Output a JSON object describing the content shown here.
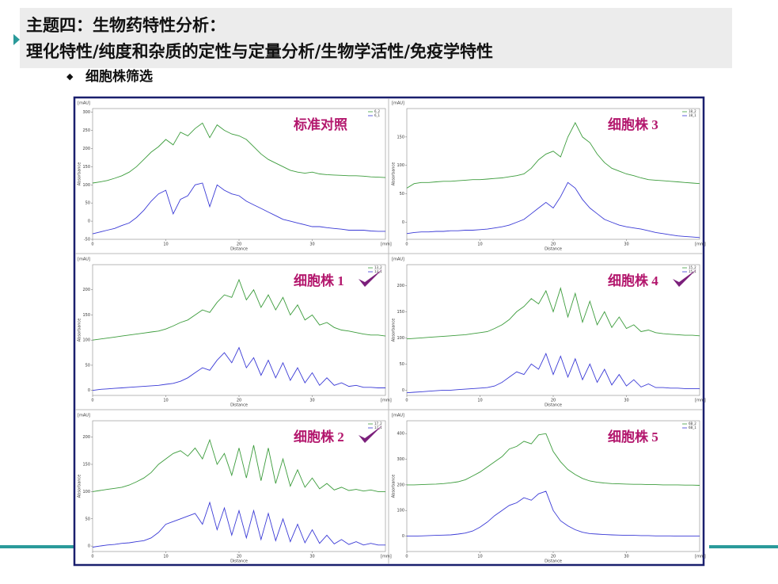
{
  "header": {
    "title_line1": "主题四：生物药特性分析：",
    "title_line2": "理化特性/纯度和杂质的定性与定量分析/生物学活性/免疫学特性",
    "bullet": "细胞株筛选"
  },
  "chart_data": [
    {
      "type": "line",
      "annotation": "标准对照",
      "checked": false,
      "y_unit": "[mAU]",
      "ylabel": "Absorbance",
      "xlabel": "Distance",
      "x_unit": "[mm]",
      "x": [
        0,
        1,
        2,
        3,
        4,
        5,
        6,
        7,
        8,
        9,
        10,
        11,
        12,
        13,
        14,
        15,
        16,
        17,
        18,
        19,
        20,
        21,
        22,
        23,
        24,
        25,
        26,
        27,
        28,
        29,
        30,
        31,
        32,
        33,
        34,
        35,
        36,
        37,
        38,
        39,
        40
      ],
      "xlim": [
        0,
        40
      ],
      "xticks": [
        0,
        10,
        20,
        30
      ],
      "ylim": [
        -50,
        310
      ],
      "yticks": [
        -50,
        0,
        50,
        100,
        150,
        200,
        250,
        300
      ],
      "series": [
        {
          "name": "6_2",
          "color": "#3c9c3c",
          "values": [
            105,
            108,
            112,
            118,
            125,
            135,
            150,
            170,
            190,
            205,
            225,
            210,
            245,
            235,
            255,
            270,
            230,
            265,
            250,
            240,
            235,
            225,
            205,
            185,
            170,
            160,
            150,
            140,
            135,
            132,
            135,
            130,
            128,
            127,
            126,
            125,
            125,
            124,
            122,
            121,
            120
          ]
        },
        {
          "name": "6_1",
          "color": "#3a3ad6",
          "values": [
            -35,
            -30,
            -25,
            -20,
            -12,
            -5,
            10,
            30,
            55,
            75,
            85,
            20,
            60,
            70,
            100,
            105,
            40,
            100,
            85,
            75,
            70,
            55,
            45,
            35,
            25,
            15,
            5,
            0,
            -5,
            -10,
            -15,
            -15,
            -18,
            -20,
            -22,
            -25,
            -25,
            -25,
            -27,
            -28,
            -28
          ]
        }
      ]
    },
    {
      "type": "line",
      "annotation": "细胞株 3",
      "checked": false,
      "y_unit": "[mAU]",
      "ylabel": "Absorbance",
      "xlabel": "Distance",
      "x_unit": "[mm]",
      "x": [
        0,
        1,
        2,
        3,
        4,
        5,
        6,
        7,
        8,
        9,
        10,
        11,
        12,
        13,
        14,
        15,
        16,
        17,
        18,
        19,
        20,
        21,
        22,
        23,
        24,
        25,
        26,
        27,
        28,
        29,
        30,
        31,
        32,
        33,
        34,
        35,
        36,
        37,
        38,
        39,
        40
      ],
      "xlim": [
        0,
        40
      ],
      "xticks": [
        0,
        10,
        20,
        30
      ],
      "ylim": [
        -30,
        200
      ],
      "yticks": [
        0,
        50,
        100,
        150
      ],
      "series": [
        {
          "name": "18_2",
          "color": "#3c9c3c",
          "values": [
            60,
            68,
            70,
            70,
            71,
            72,
            72,
            73,
            74,
            75,
            75,
            76,
            77,
            78,
            80,
            82,
            85,
            95,
            110,
            120,
            125,
            115,
            150,
            175,
            150,
            140,
            120,
            105,
            95,
            90,
            85,
            82,
            78,
            75,
            74,
            73,
            72,
            71,
            70,
            69,
            68
          ]
        },
        {
          "name": "18_1",
          "color": "#3a3ad6",
          "values": [
            -20,
            -18,
            -17,
            -17,
            -16,
            -16,
            -15,
            -15,
            -14,
            -14,
            -13,
            -12,
            -10,
            -8,
            -5,
            0,
            5,
            15,
            25,
            35,
            25,
            45,
            70,
            60,
            40,
            25,
            15,
            5,
            0,
            -5,
            -8,
            -10,
            -12,
            -15,
            -18,
            -20,
            -22,
            -24,
            -25,
            -26,
            -27
          ]
        }
      ]
    },
    {
      "type": "line",
      "annotation": "细胞株 1",
      "checked": true,
      "y_unit": "[mAU]",
      "ylabel": "Absorbance",
      "xlabel": "Distance",
      "x_unit": "[mm]",
      "x": [
        0,
        1,
        2,
        3,
        4,
        5,
        6,
        7,
        8,
        9,
        10,
        11,
        12,
        13,
        14,
        15,
        16,
        17,
        18,
        19,
        20,
        21,
        22,
        23,
        24,
        25,
        26,
        27,
        28,
        29,
        30,
        31,
        32,
        33,
        34,
        35,
        36,
        37,
        38,
        39,
        40
      ],
      "xlim": [
        0,
        40
      ],
      "xticks": [
        0,
        10,
        20,
        30
      ],
      "ylim": [
        -10,
        250
      ],
      "yticks": [
        0,
        50,
        100,
        150,
        200
      ],
      "series": [
        {
          "name": "13_2",
          "color": "#3c9c3c",
          "values": [
            100,
            102,
            104,
            106,
            108,
            110,
            112,
            114,
            116,
            118,
            122,
            128,
            135,
            140,
            150,
            160,
            155,
            175,
            190,
            185,
            220,
            180,
            200,
            165,
            190,
            160,
            185,
            150,
            170,
            140,
            150,
            130,
            135,
            125,
            120,
            118,
            115,
            112,
            110,
            110,
            108
          ]
        },
        {
          "name": "13_1",
          "color": "#3a3ad6",
          "values": [
            0,
            2,
            3,
            4,
            5,
            6,
            7,
            8,
            9,
            10,
            12,
            14,
            18,
            25,
            35,
            45,
            40,
            60,
            75,
            55,
            85,
            45,
            65,
            30,
            60,
            25,
            55,
            20,
            45,
            15,
            35,
            10,
            25,
            10,
            15,
            8,
            10,
            6,
            6,
            5,
            5
          ]
        }
      ]
    },
    {
      "type": "line",
      "annotation": "细胞株 4",
      "checked": true,
      "y_unit": "[mAU]",
      "ylabel": "Absorbance",
      "xlabel": "Distance",
      "x_unit": "[mm]",
      "x": [
        0,
        1,
        2,
        3,
        4,
        5,
        6,
        7,
        8,
        9,
        10,
        11,
        12,
        13,
        14,
        15,
        16,
        17,
        18,
        19,
        20,
        21,
        22,
        23,
        24,
        25,
        26,
        27,
        28,
        29,
        30,
        31,
        32,
        33,
        34,
        35,
        36,
        37,
        38,
        39,
        40
      ],
      "xlim": [
        0,
        40
      ],
      "xticks": [
        0,
        10,
        20,
        30
      ],
      "ylim": [
        -10,
        240
      ],
      "yticks": [
        0,
        50,
        100,
        150,
        200
      ],
      "series": [
        {
          "name": "15_2",
          "color": "#3c9c3c",
          "values": [
            98,
            99,
            100,
            101,
            102,
            103,
            104,
            105,
            106,
            108,
            110,
            112,
            118,
            125,
            135,
            150,
            160,
            175,
            165,
            190,
            150,
            195,
            140,
            185,
            130,
            170,
            125,
            150,
            120,
            140,
            118,
            125,
            112,
            115,
            110,
            108,
            107,
            106,
            105,
            105,
            104
          ]
        },
        {
          "name": "15_1",
          "color": "#3a3ad6",
          "values": [
            -5,
            -4,
            -3,
            -2,
            -1,
            0,
            0,
            1,
            2,
            3,
            4,
            5,
            8,
            15,
            25,
            35,
            30,
            50,
            40,
            70,
            30,
            65,
            25,
            60,
            20,
            50,
            15,
            40,
            10,
            30,
            8,
            20,
            6,
            12,
            5,
            5,
            4,
            4,
            3,
            3,
            3
          ]
        }
      ]
    },
    {
      "type": "line",
      "annotation": "细胞株 2",
      "checked": true,
      "y_unit": "[mAU]",
      "ylabel": "Absorbance",
      "xlabel": "Distance",
      "x_unit": "[mm]",
      "x": [
        0,
        1,
        2,
        3,
        4,
        5,
        6,
        7,
        8,
        9,
        10,
        11,
        12,
        13,
        14,
        15,
        16,
        17,
        18,
        19,
        20,
        21,
        22,
        23,
        24,
        25,
        26,
        27,
        28,
        29,
        30,
        31,
        32,
        33,
        34,
        35,
        36,
        37,
        38,
        39,
        40
      ],
      "xlim": [
        0,
        40
      ],
      "xticks": [
        0,
        10,
        20,
        30
      ],
      "ylim": [
        -10,
        230
      ],
      "yticks": [
        0,
        50,
        100,
        150,
        200
      ],
      "series": [
        {
          "name": "17_2",
          "color": "#3c9c3c",
          "values": [
            100,
            102,
            104,
            106,
            108,
            112,
            118,
            125,
            135,
            150,
            160,
            170,
            175,
            165,
            180,
            160,
            195,
            150,
            170,
            130,
            180,
            125,
            185,
            120,
            180,
            115,
            160,
            110,
            140,
            108,
            125,
            105,
            115,
            103,
            108,
            102,
            104,
            101,
            103,
            100,
            100
          ]
        },
        {
          "name": "17_1",
          "color": "#3a3ad6",
          "values": [
            -2,
            0,
            2,
            3,
            5,
            6,
            8,
            10,
            15,
            25,
            40,
            45,
            50,
            55,
            60,
            40,
            80,
            30,
            70,
            20,
            65,
            15,
            65,
            12,
            60,
            10,
            50,
            8,
            40,
            6,
            30,
            5,
            20,
            4,
            12,
            3,
            8,
            2,
            5,
            2,
            2
          ]
        }
      ]
    },
    {
      "type": "line",
      "annotation": "细胞株 5",
      "checked": false,
      "y_unit": "[mAU]",
      "ylabel": "Absorbance",
      "xlabel": "Distance",
      "x_unit": "[mm]",
      "x": [
        0,
        1,
        2,
        3,
        4,
        5,
        6,
        7,
        8,
        9,
        10,
        11,
        12,
        13,
        14,
        15,
        16,
        17,
        18,
        19,
        20,
        21,
        22,
        23,
        24,
        25,
        26,
        27,
        28,
        29,
        30,
        31,
        32,
        33,
        34,
        35,
        36,
        37,
        38,
        39,
        40
      ],
      "xlim": [
        0,
        40
      ],
      "xticks": [
        0,
        10,
        20,
        30
      ],
      "ylim": [
        -60,
        450
      ],
      "yticks": [
        0,
        100,
        200,
        300,
        400
      ],
      "series": [
        {
          "name": "6B_2",
          "color": "#3c9c3c",
          "values": [
            200,
            200,
            201,
            202,
            203,
            205,
            208,
            212,
            220,
            235,
            250,
            270,
            290,
            310,
            340,
            350,
            370,
            360,
            395,
            400,
            330,
            290,
            260,
            240,
            225,
            215,
            210,
            207,
            205,
            204,
            203,
            202,
            202,
            201,
            201,
            200,
            200,
            200,
            199,
            199,
            198
          ]
        },
        {
          "name": "6B_1",
          "color": "#3a3ad6",
          "values": [
            0,
            0,
            1,
            2,
            3,
            4,
            5,
            8,
            12,
            20,
            35,
            55,
            80,
            100,
            120,
            130,
            150,
            140,
            165,
            175,
            100,
            60,
            40,
            25,
            15,
            10,
            8,
            6,
            5,
            4,
            3,
            3,
            2,
            2,
            1,
            1,
            1,
            0,
            0,
            0,
            0
          ]
        }
      ]
    }
  ]
}
